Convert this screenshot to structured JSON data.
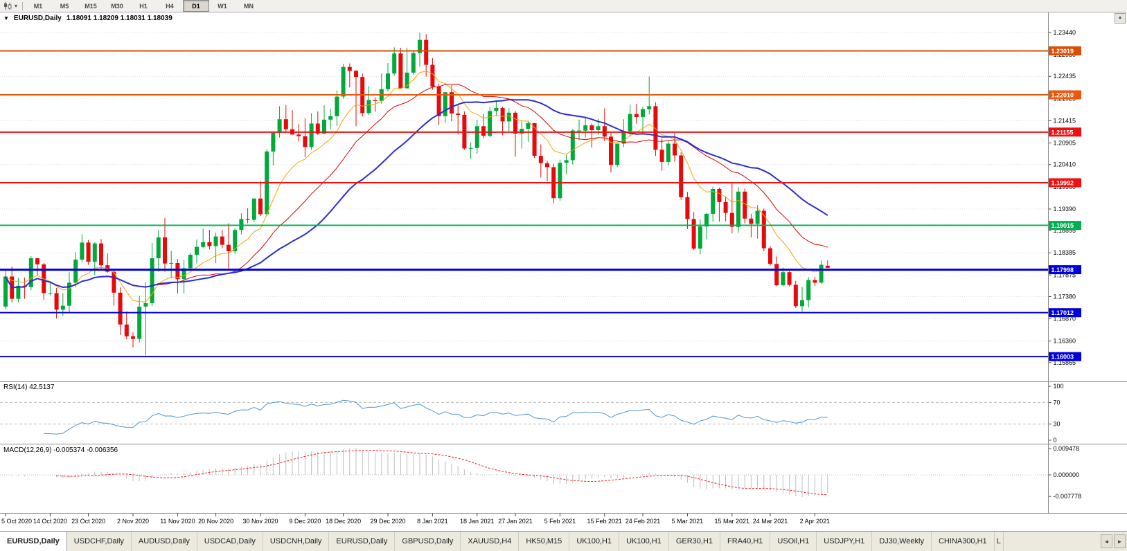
{
  "toolbar": {
    "timeframes": [
      {
        "label": "M1"
      },
      {
        "label": "M5"
      },
      {
        "label": "M15"
      },
      {
        "label": "M30"
      },
      {
        "label": "H1"
      },
      {
        "label": "H4"
      },
      {
        "label": "D1",
        "active": true
      },
      {
        "label": "W1"
      },
      {
        "label": "MN"
      }
    ]
  },
  "chart_header": {
    "marker": "▼",
    "symbol_period": "EURUSD,Daily",
    "ohlc": "1.18091 1.18209 1.18031 1.18039",
    "corner_button": "▲"
  },
  "chart_data": {
    "type": "candlestick",
    "symbol": "EURUSD",
    "period": "Daily",
    "grid": true,
    "colors": {
      "up": "#00a93a",
      "down": "#e60a0a"
    },
    "price_range": {
      "max": 1.239,
      "min": 1.1545
    },
    "price_axis_labels": [
      "1.23440",
      "1.22930",
      "1.22435",
      "1.21925",
      "1.21415",
      "1.20905",
      "1.20410",
      "1.19900",
      "1.19390",
      "1.18895",
      "1.18385",
      "1.17875",
      "1.17380",
      "1.16870",
      "1.16360",
      "1.15865"
    ],
    "x_labels": [
      "5 Oct 2020",
      "14 Oct 2020",
      "23 Oct 2020",
      "2 Nov 2020",
      "11 Nov 2020",
      "20 Nov 2020",
      "30 Nov 2020",
      "9 Dec 2020",
      "18 Dec 2020",
      "29 Dec 2020",
      "8 Jan 2021",
      "18 Jan 2021",
      "27 Jan 2021",
      "5 Feb 2021",
      "15 Feb 2021",
      "24 Feb 2021",
      "5 Mar 2021",
      "15 Mar 2021",
      "24 Mar 2021",
      "2 Apr 2021"
    ],
    "hlines": [
      {
        "price": 1.23019,
        "label": "1.23019",
        "color": "#d94f06",
        "width": 2
      },
      {
        "price": 1.2201,
        "label": "1.22010",
        "color": "#e8590c",
        "width": 2
      },
      {
        "price": 1.21155,
        "label": "1.21155",
        "color": "#f01010",
        "width": 2
      },
      {
        "price": 1.19992,
        "label": "1.19992",
        "color": "#f01010",
        "width": 2
      },
      {
        "price": 1.19015,
        "label": "1.19015",
        "color": "#00b050",
        "width": 2
      },
      {
        "price": 1.17998,
        "label": "1.17998",
        "color": "#0000dc",
        "width": 3
      },
      {
        "price": 1.17012,
        "label": "1.17012",
        "color": "#0000dc",
        "width": 2
      },
      {
        "price": 1.16003,
        "label": "1.16003",
        "color": "#0000dc",
        "width": 2
      }
    ],
    "moving_averages": [
      {
        "method": "ema",
        "period": 10,
        "color": "#ffa200",
        "width": 1
      },
      {
        "method": "sma",
        "period": 20,
        "color": "#e00000",
        "width": 1
      },
      {
        "method": "sma",
        "period": 32,
        "color": "#2b2bd5",
        "width": 2
      }
    ],
    "rsi": {
      "label": "RSI(14) 42.5137",
      "period": 14,
      "value": "42.5137",
      "levels": [
        100,
        70,
        30,
        0
      ],
      "line_color": "#4d96d2"
    },
    "macd": {
      "label": "MACD(12,26,9) -0.005374 -0.006356",
      "fast": 12,
      "slow": 26,
      "signal_period": 9,
      "values_text": [
        "-0.005374",
        "-0.006356"
      ],
      "axis_labels": [
        "0.009478",
        "0.000000",
        "-0.007778"
      ],
      "bar_color": "#bdbdbd",
      "signal_color": "#f02020"
    },
    "candles": [
      [
        1.1715,
        1.1797,
        1.171,
        1.1784
      ],
      [
        1.1784,
        1.1807,
        1.1725,
        1.1733
      ],
      [
        1.1733,
        1.1781,
        1.1725,
        1.1763
      ],
      [
        1.1763,
        1.1782,
        1.1733,
        1.176
      ],
      [
        1.176,
        1.1831,
        1.1753,
        1.1826
      ],
      [
        1.1826,
        1.1827,
        1.1786,
        1.1812
      ],
      [
        1.1812,
        1.1815,
        1.1731,
        1.1746
      ],
      [
        1.1746,
        1.1772,
        1.174,
        1.1746
      ],
      [
        1.1746,
        1.1758,
        1.1688,
        1.1708
      ],
      [
        1.1708,
        1.1746,
        1.1694,
        1.1717
      ],
      [
        1.1717,
        1.1794,
        1.1703,
        1.177
      ],
      [
        1.177,
        1.184,
        1.176,
        1.1823
      ],
      [
        1.1823,
        1.1881,
        1.1817,
        1.1862
      ],
      [
        1.1862,
        1.1868,
        1.1811,
        1.1818
      ],
      [
        1.1818,
        1.1863,
        1.1787,
        1.186
      ],
      [
        1.186,
        1.187,
        1.1803,
        1.181
      ],
      [
        1.181,
        1.1837,
        1.1793,
        1.1795
      ],
      [
        1.1795,
        1.18,
        1.1717,
        1.1747
      ],
      [
        1.1747,
        1.1759,
        1.165,
        1.1674
      ],
      [
        1.1674,
        1.1704,
        1.164,
        1.1647
      ],
      [
        1.1647,
        1.1656,
        1.1622,
        1.1641
      ],
      [
        1.1641,
        1.174,
        1.1633,
        1.1715
      ],
      [
        1.1715,
        1.1771,
        1.1603,
        1.1723
      ],
      [
        1.1723,
        1.1861,
        1.1716,
        1.1826
      ],
      [
        1.1826,
        1.1891,
        1.1795,
        1.1874
      ],
      [
        1.1874,
        1.1918,
        1.1795,
        1.1814
      ],
      [
        1.1814,
        1.1843,
        1.178,
        1.1815
      ],
      [
        1.1815,
        1.1824,
        1.1745,
        1.1778
      ],
      [
        1.1778,
        1.1822,
        1.1745,
        1.1803
      ],
      [
        1.1803,
        1.1838,
        1.1799,
        1.1834
      ],
      [
        1.1834,
        1.1869,
        1.1814,
        1.1852
      ],
      [
        1.1852,
        1.1894,
        1.1849,
        1.1863
      ],
      [
        1.1863,
        1.1891,
        1.1846,
        1.1854
      ],
      [
        1.1854,
        1.1885,
        1.1815,
        1.1876
      ],
      [
        1.1876,
        1.1891,
        1.1849,
        1.1857
      ],
      [
        1.1857,
        1.1906,
        1.18,
        1.1842
      ],
      [
        1.1842,
        1.1895,
        1.1836,
        1.1891
      ],
      [
        1.1891,
        1.1929,
        1.1881,
        1.1916
      ],
      [
        1.1916,
        1.1941,
        1.1906,
        1.1914
      ],
      [
        1.1914,
        1.1963,
        1.1909,
        1.1963
      ],
      [
        1.1963,
        1.2003,
        1.1923,
        1.1927
      ],
      [
        1.1927,
        1.2076,
        1.1923,
        1.2071
      ],
      [
        1.2071,
        1.2117,
        1.2039,
        1.2114
      ],
      [
        1.2114,
        1.2175,
        1.2103,
        1.2145
      ],
      [
        1.2145,
        1.2177,
        1.2115,
        1.2122
      ],
      [
        1.2122,
        1.2166,
        1.2109,
        1.211
      ],
      [
        1.211,
        1.2134,
        1.2094,
        1.2106
      ],
      [
        1.2106,
        1.2147,
        1.2058,
        1.2081
      ],
      [
        1.2081,
        1.2159,
        1.2075,
        1.2135
      ],
      [
        1.2135,
        1.2163,
        1.2109,
        1.2112
      ],
      [
        1.2112,
        1.2177,
        1.211,
        1.2144
      ],
      [
        1.2144,
        1.2169,
        1.2122,
        1.2152
      ],
      [
        1.2152,
        1.2211,
        1.213,
        1.2197
      ],
      [
        1.2197,
        1.2272,
        1.2192,
        1.2265
      ],
      [
        1.2265,
        1.2273,
        1.2218,
        1.2256
      ],
      [
        1.2256,
        1.2258,
        1.2129,
        1.2242
      ],
      [
        1.2242,
        1.225,
        1.2151,
        1.2159
      ],
      [
        1.2159,
        1.2221,
        1.2154,
        1.2189
      ],
      [
        1.2189,
        1.2195,
        1.2162,
        1.2187
      ],
      [
        1.2187,
        1.225,
        1.2181,
        1.2214
      ],
      [
        1.2214,
        1.2274,
        1.2209,
        1.225
      ],
      [
        1.225,
        1.231,
        1.2245,
        1.2296
      ],
      [
        1.2296,
        1.2309,
        1.2252,
        1.2216
      ],
      [
        1.2216,
        1.2309,
        1.2228,
        1.2252
      ],
      [
        1.2252,
        1.2304,
        1.2247,
        1.2297
      ],
      [
        1.2297,
        1.2344,
        1.2266,
        1.2327
      ],
      [
        1.2327,
        1.234,
        1.2243,
        1.227
      ],
      [
        1.227,
        1.2285,
        1.2213,
        1.222
      ],
      [
        1.222,
        1.2227,
        1.2132,
        1.2152
      ],
      [
        1.2152,
        1.2208,
        1.2137,
        1.2207
      ],
      [
        1.2207,
        1.2223,
        1.214,
        1.2158
      ],
      [
        1.2158,
        1.218,
        1.211,
        1.2155
      ],
      [
        1.2155,
        1.2163,
        1.2075,
        1.2078
      ],
      [
        1.2078,
        1.2092,
        1.2054,
        1.2079
      ],
      [
        1.2079,
        1.2144,
        1.2066,
        1.2129
      ],
      [
        1.2129,
        1.2158,
        1.2102,
        1.2107
      ],
      [
        1.2107,
        1.2173,
        1.2104,
        1.2164
      ],
      [
        1.2164,
        1.2189,
        1.2152,
        1.2171
      ],
      [
        1.2171,
        1.2174,
        1.2108,
        1.214
      ],
      [
        1.214,
        1.217,
        1.2118,
        1.216
      ],
      [
        1.216,
        1.2164,
        1.2059,
        1.2112
      ],
      [
        1.2112,
        1.2142,
        1.2078,
        1.2123
      ],
      [
        1.2123,
        1.2142,
        1.2093,
        1.2136
      ],
      [
        1.2136,
        1.2136,
        1.2056,
        1.2061
      ],
      [
        1.2061,
        1.2087,
        1.2011,
        1.2044
      ],
      [
        1.2044,
        1.205,
        1.2003,
        1.2035
      ],
      [
        1.2035,
        1.2043,
        1.1952,
        1.1964
      ],
      [
        1.1964,
        1.2052,
        1.1958,
        1.2045
      ],
      [
        1.2045,
        1.2064,
        1.2019,
        1.2051
      ],
      [
        1.2051,
        1.2123,
        1.2041,
        1.2119
      ],
      [
        1.2119,
        1.2144,
        1.2097,
        1.2119
      ],
      [
        1.2119,
        1.2151,
        1.2103,
        1.2131
      ],
      [
        1.2131,
        1.2135,
        1.208,
        1.212
      ],
      [
        1.212,
        1.2146,
        1.2109,
        1.2129
      ],
      [
        1.2129,
        1.217,
        1.2095,
        1.2105
      ],
      [
        1.2105,
        1.2113,
        1.2023,
        1.204
      ],
      [
        1.204,
        1.2088,
        1.2035,
        1.2089
      ],
      [
        1.2089,
        1.2145,
        1.2081,
        1.2118
      ],
      [
        1.2118,
        1.2179,
        1.2107,
        1.2157
      ],
      [
        1.2157,
        1.218,
        1.2135,
        1.215
      ],
      [
        1.215,
        1.2174,
        1.211,
        1.2168
      ],
      [
        1.2168,
        1.2243,
        1.2156,
        1.2175
      ],
      [
        1.2175,
        1.2184,
        1.2061,
        1.2075
      ],
      [
        1.2075,
        1.2101,
        1.2027,
        1.2047
      ],
      [
        1.2047,
        1.2094,
        1.2039,
        1.2089
      ],
      [
        1.2089,
        1.2113,
        1.2048,
        1.2062
      ],
      [
        1.2062,
        1.2069,
        1.196,
        1.1966
      ],
      [
        1.1966,
        1.1978,
        1.1893,
        1.1916
      ],
      [
        1.1916,
        1.1932,
        1.1845,
        1.1848
      ],
      [
        1.1848,
        1.1915,
        1.1835,
        1.1899
      ],
      [
        1.1899,
        1.193,
        1.187,
        1.1928
      ],
      [
        1.1928,
        1.199,
        1.191,
        1.1985
      ],
      [
        1.1985,
        1.1988,
        1.191,
        1.1955
      ],
      [
        1.1955,
        1.1968,
        1.1911,
        1.193
      ],
      [
        1.193,
        1.1997,
        1.1883,
        1.1898
      ],
      [
        1.1898,
        1.1989,
        1.1885,
        1.1979
      ],
      [
        1.1979,
        1.1986,
        1.1906,
        1.1917
      ],
      [
        1.1917,
        1.1928,
        1.1874,
        1.1905
      ],
      [
        1.1905,
        1.1948,
        1.1871,
        1.1935
      ],
      [
        1.1935,
        1.194,
        1.1842,
        1.1849
      ],
      [
        1.1849,
        1.1853,
        1.1809,
        1.1813
      ],
      [
        1.1813,
        1.183,
        1.1762,
        1.1764
      ],
      [
        1.1764,
        1.1805,
        1.1761,
        1.1794
      ],
      [
        1.1794,
        1.1796,
        1.1762,
        1.1765
      ],
      [
        1.1765,
        1.1774,
        1.1712,
        1.1716
      ],
      [
        1.1716,
        1.176,
        1.1704,
        1.173
      ],
      [
        1.173,
        1.1783,
        1.1713,
        1.1776
      ],
      [
        1.1776,
        1.1784,
        1.1762,
        1.177
      ],
      [
        1.177,
        1.1821,
        1.1767,
        1.1811
      ],
      [
        1.1809,
        1.1821,
        1.1803,
        1.1804
      ]
    ]
  },
  "tabs": {
    "items": [
      {
        "label": "EURUSD,Daily",
        "active": true
      },
      {
        "label": "USDCHF,Daily"
      },
      {
        "label": "AUDUSD,Daily"
      },
      {
        "label": "USDCAD,Daily"
      },
      {
        "label": "USDCNH,Daily"
      },
      {
        "label": "EURUSD,Daily"
      },
      {
        "label": "GBPUSD,Daily"
      },
      {
        "label": "XAUUSD,H4"
      },
      {
        "label": "HK50,M15"
      },
      {
        "label": "UK100,H1"
      },
      {
        "label": "UK100,H1"
      },
      {
        "label": "GER30,H1"
      },
      {
        "label": "FRA40,H1"
      },
      {
        "label": "USOil,H1"
      },
      {
        "label": "USDJPY,H1"
      },
      {
        "label": "DJ30,Weekly"
      },
      {
        "label": "CHINA300,H1"
      },
      {
        "label": "L",
        "partial": true
      }
    ],
    "scroll_left": "◄",
    "scroll_right": "►"
  }
}
